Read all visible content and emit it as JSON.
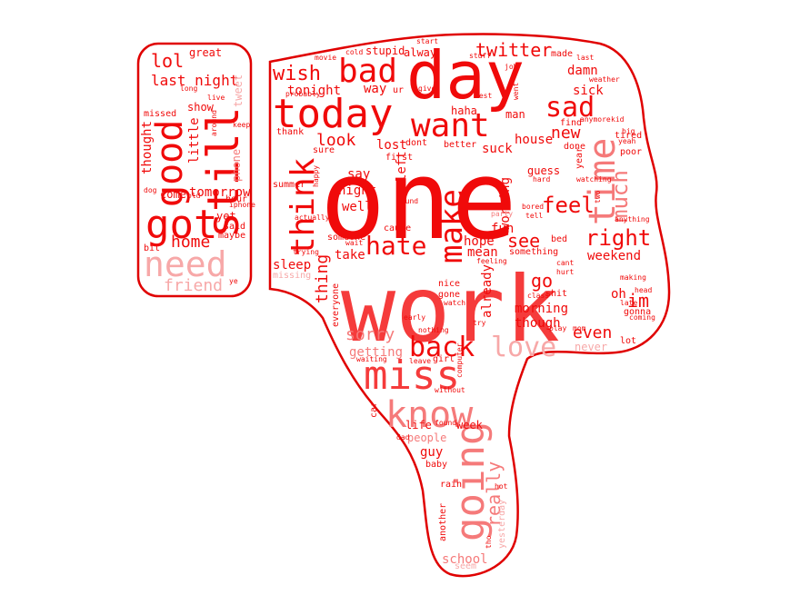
{
  "colors": {
    "outline": "#e00000",
    "red": "#f00a0a",
    "red_mid": "#f53b3b",
    "pink": "#f57a7a",
    "pale": "#f7a8a8"
  },
  "words": [
    {
      "text": "one"
    },
    {
      "text": "work"
    },
    {
      "text": "day"
    },
    {
      "text": "today"
    },
    {
      "text": "bad"
    },
    {
      "text": "want"
    },
    {
      "text": "miss"
    },
    {
      "text": "know"
    },
    {
      "text": "going"
    },
    {
      "text": "got"
    },
    {
      "text": "good"
    },
    {
      "text": "still"
    },
    {
      "text": "need"
    },
    {
      "text": "think"
    },
    {
      "text": "make"
    },
    {
      "text": "time"
    },
    {
      "text": "sad"
    },
    {
      "text": "back"
    },
    {
      "text": "love"
    },
    {
      "text": "hate"
    },
    {
      "text": "right"
    },
    {
      "text": "feel"
    },
    {
      "text": "much"
    },
    {
      "text": "twitter"
    },
    {
      "text": "wish"
    },
    {
      "text": "home"
    },
    {
      "text": "lol"
    },
    {
      "text": "last night"
    },
    {
      "text": "friend"
    },
    {
      "text": "tomorrow"
    },
    {
      "text": "sorry"
    },
    {
      "text": "really"
    },
    {
      "text": "look"
    },
    {
      "text": "tonight"
    },
    {
      "text": "new"
    },
    {
      "text": "even"
    },
    {
      "text": "im"
    },
    {
      "text": "see"
    },
    {
      "text": "go"
    },
    {
      "text": "oh"
    },
    {
      "text": "weekend"
    },
    {
      "text": "thing"
    },
    {
      "text": "sleep"
    },
    {
      "text": "take"
    },
    {
      "text": "hope"
    },
    {
      "text": "mean"
    },
    {
      "text": "fun"
    },
    {
      "text": "morning"
    },
    {
      "text": "though"
    },
    {
      "text": "already"
    },
    {
      "text": "working"
    },
    {
      "text": "suck"
    },
    {
      "text": "house"
    },
    {
      "text": "sick"
    },
    {
      "text": "damn"
    },
    {
      "text": "say"
    },
    {
      "text": "night"
    },
    {
      "text": "well"
    },
    {
      "text": "lost"
    },
    {
      "text": "left"
    },
    {
      "text": "way"
    },
    {
      "text": "show"
    },
    {
      "text": "great"
    },
    {
      "text": "little"
    },
    {
      "text": "thought"
    },
    {
      "text": "come"
    },
    {
      "text": "yet"
    },
    {
      "text": "phone"
    },
    {
      "text": "tweet"
    },
    {
      "text": "guy"
    },
    {
      "text": "people"
    },
    {
      "text": "school"
    },
    {
      "text": "life"
    },
    {
      "text": "week"
    },
    {
      "text": "getting"
    },
    {
      "text": "never"
    },
    {
      "text": "stupid"
    },
    {
      "text": "alway"
    },
    {
      "text": "man"
    },
    {
      "text": "better"
    },
    {
      "text": "haha"
    },
    {
      "text": "guess"
    },
    {
      "text": "shit"
    },
    {
      "text": "gone"
    },
    {
      "text": "nice"
    },
    {
      "text": "girl"
    },
    {
      "text": "lot"
    },
    {
      "text": "gonna"
    },
    {
      "text": "tired"
    },
    {
      "text": "poor"
    },
    {
      "text": "find"
    },
    {
      "text": "done"
    },
    {
      "text": "cause"
    },
    {
      "text": "first"
    },
    {
      "text": "dont"
    },
    {
      "text": "someone"
    },
    {
      "text": "everyone"
    },
    {
      "text": "sure"
    },
    {
      "text": "thank"
    },
    {
      "text": "summer"
    },
    {
      "text": "missing"
    },
    {
      "text": "hour"
    },
    {
      "text": "said"
    },
    {
      "text": "maybe"
    },
    {
      "text": "missed"
    },
    {
      "text": "bit"
    },
    {
      "text": "made"
    },
    {
      "text": "rain"
    },
    {
      "text": "baby"
    },
    {
      "text": "another"
    },
    {
      "text": "yesterday"
    },
    {
      "text": "seem"
    },
    {
      "text": "car"
    },
    {
      "text": "bed"
    },
    {
      "text": "something"
    },
    {
      "text": "party"
    },
    {
      "text": "anything"
    },
    {
      "text": "head"
    },
    {
      "text": "coming"
    },
    {
      "text": "late"
    },
    {
      "text": "making"
    },
    {
      "text": "big"
    },
    {
      "text": "yeah"
    },
    {
      "text": "kid"
    },
    {
      "text": "year"
    },
    {
      "text": "hurt"
    },
    {
      "text": "cant"
    },
    {
      "text": "class"
    },
    {
      "text": "play"
    },
    {
      "text": "mom"
    },
    {
      "text": "ur"
    },
    {
      "text": "give"
    },
    {
      "text": "best"
    },
    {
      "text": "went"
    },
    {
      "text": "job"
    },
    {
      "text": "stuff"
    },
    {
      "text": "start"
    },
    {
      "text": "cold"
    },
    {
      "text": "movie"
    },
    {
      "text": "probably"
    },
    {
      "text": "long"
    },
    {
      "text": "live"
    },
    {
      "text": "keep"
    },
    {
      "text": "around"
    },
    {
      "text": "old"
    },
    {
      "text": "dog"
    },
    {
      "text": "iphone"
    },
    {
      "text": "ye"
    },
    {
      "text": "happy"
    },
    {
      "text": "trying"
    },
    {
      "text": "actually"
    },
    {
      "text": "wait"
    },
    {
      "text": "feeling"
    },
    {
      "text": "watch"
    },
    {
      "text": "early"
    },
    {
      "text": "nothing"
    },
    {
      "text": "sound"
    },
    {
      "text": "try"
    },
    {
      "text": "waiting"
    },
    {
      "text": "leave"
    },
    {
      "text": "without"
    },
    {
      "text": "computer"
    },
    {
      "text": "dad"
    },
    {
      "text": "found"
    },
    {
      "text": "tho"
    },
    {
      "text": "hot"
    },
    {
      "text": "hard"
    },
    {
      "text": "bored"
    },
    {
      "text": "tell"
    },
    {
      "text": "weather"
    },
    {
      "text": "anymore"
    },
    {
      "text": "last"
    },
    {
      "text": "two"
    },
    {
      "text": "watching"
    }
  ]
}
